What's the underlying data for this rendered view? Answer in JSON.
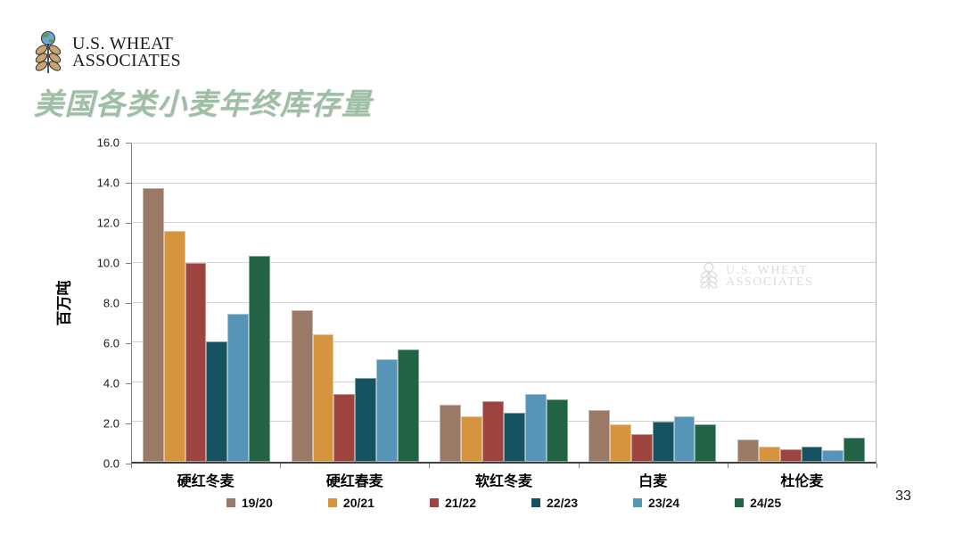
{
  "page": {
    "number": "33",
    "background": "#ffffff"
  },
  "logo": {
    "line1": "U.S. WHEAT",
    "line2": "ASSOCIATES"
  },
  "title": {
    "text": "美国各类小麦年终库存量",
    "color": "#9fbea6"
  },
  "watermark": {
    "line1": "U.S. WHEAT",
    "line2": "ASSOCIATES",
    "color": "#dcdcdc"
  },
  "chart_data": {
    "type": "bar",
    "title": "美国各类小麦年终库存量",
    "xlabel": "",
    "ylabel": "百万吨",
    "ylim": [
      0,
      16
    ],
    "ytick_step": 2,
    "ytick_labels": [
      "16.0",
      "14.0",
      "12.0",
      "10.0",
      "8.0",
      "6.0",
      "4.0",
      "2.0",
      "0.0"
    ],
    "grid": true,
    "legend_position": "bottom",
    "categories": [
      "硬红冬麦",
      "硬红春麦",
      "软红冬麦",
      "白麦",
      "杜伦麦"
    ],
    "series": [
      {
        "name": "19/20",
        "color": "#9a7a67",
        "values": [
          13.75,
          7.6,
          2.85,
          2.6,
          1.1
        ]
      },
      {
        "name": "20/21",
        "color": "#d59440",
        "values": [
          11.6,
          6.4,
          2.3,
          1.9,
          0.75
        ]
      },
      {
        "name": "21/22",
        "color": "#9e4440",
        "values": [
          10.0,
          3.4,
          3.05,
          1.4,
          0.65
        ]
      },
      {
        "name": "22/23",
        "color": "#175261",
        "values": [
          6.05,
          4.2,
          2.45,
          2.0,
          0.75
        ]
      },
      {
        "name": "23/24",
        "color": "#5795b8",
        "values": [
          7.45,
          5.15,
          3.4,
          2.3,
          0.6
        ]
      },
      {
        "name": "24/25",
        "color": "#226245",
        "values": [
          10.35,
          5.65,
          3.15,
          1.9,
          1.2
        ]
      }
    ]
  }
}
